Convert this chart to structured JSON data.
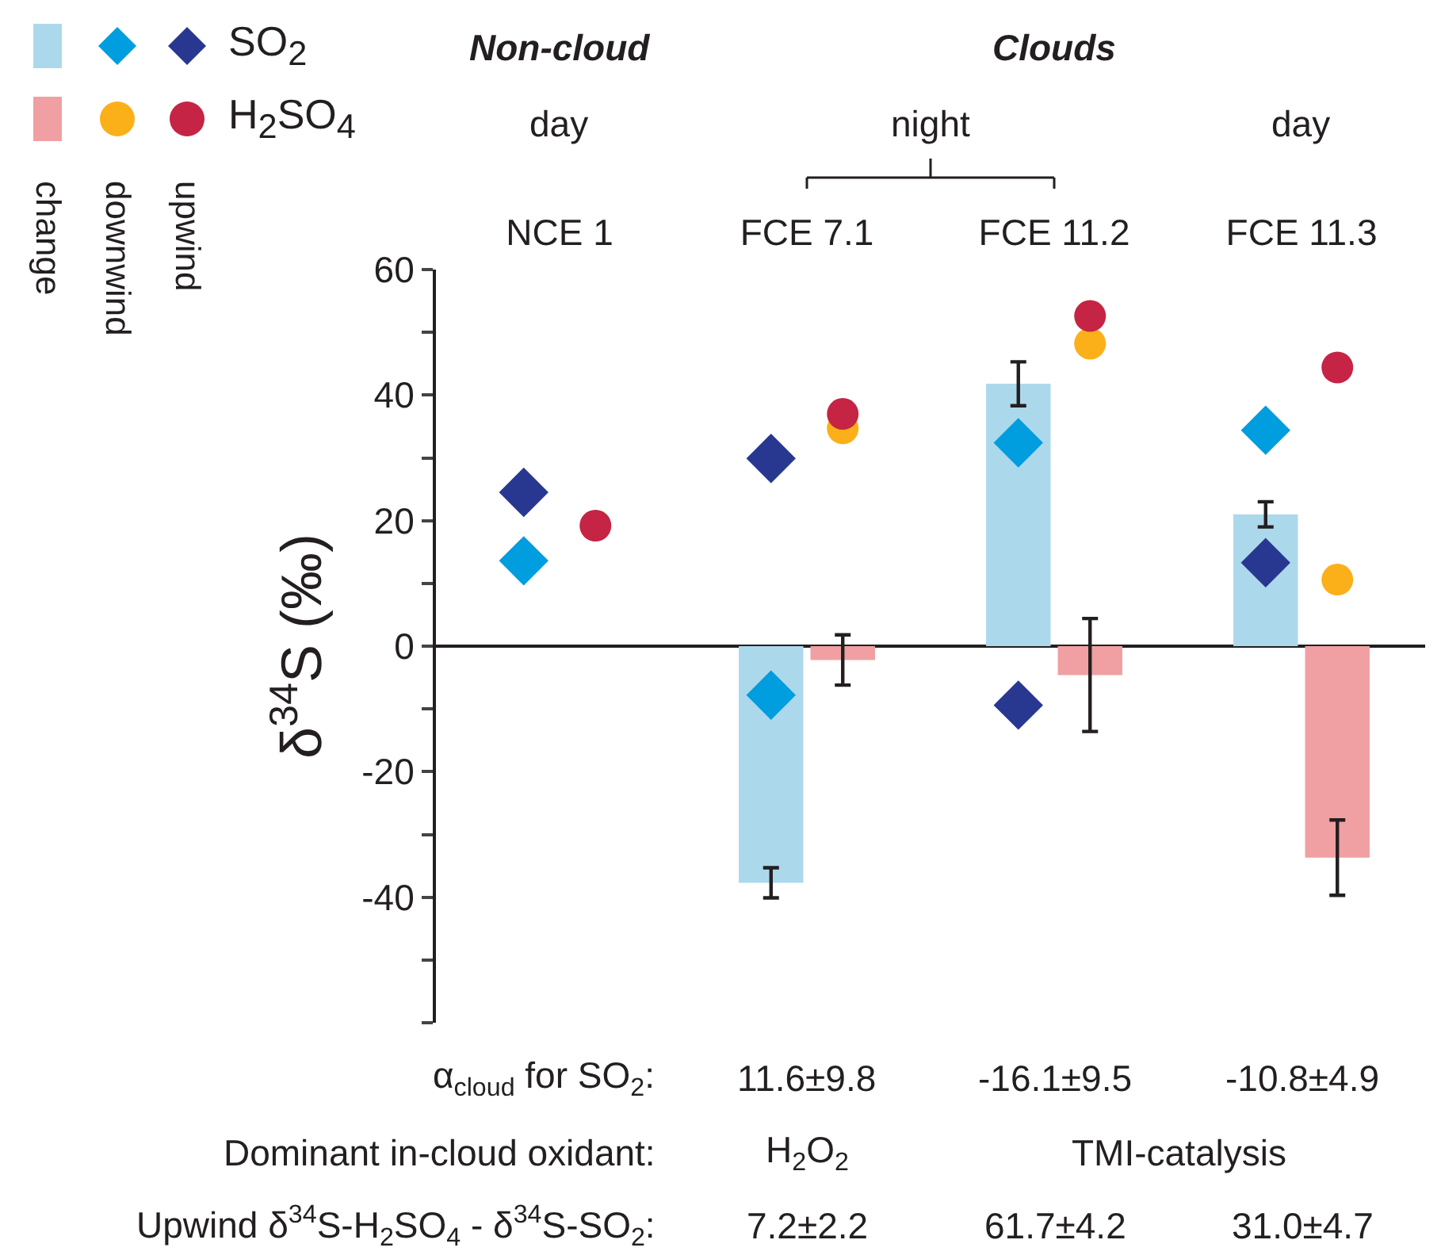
{
  "chart_data": {
    "type": "bar",
    "categories": [
      "NCE 1",
      "FCE 7.1",
      "FCE 11.2",
      "FCE 11.3"
    ],
    "ylabel": "δ$^{34}$S (‰)",
    "legend": "top left",
    "ylim": [
      -60,
      60
    ],
    "yticks": [
      {
        "value": -60,
        "label": null
      },
      {
        "value": -50,
        "label": null
      },
      -40,
      {
        "value": -30,
        "label": null
      },
      -20,
      {
        "value": -10,
        "label": null
      },
      0,
      {
        "value": 10,
        "label": null
      },
      20,
      {
        "value": 30,
        "label": null
      },
      40,
      {
        "value": 50,
        "label": null
      },
      60
    ],
    "series": [
      {
        "color": "#acd8ec",
        "values": [
          null,
          -37.7,
          41.8,
          21.0
        ],
        "errors": [
          null,
          2.4,
          3.5,
          2.0
        ]
      },
      {
        "type": "scatter",
        "marker": "diamond",
        "color": "#009ddf",
        "values": [
          13.6,
          -7.8,
          32.4,
          34.4
        ]
      },
      {
        "name": "SO$_{2}$",
        "type": "scatter",
        "marker": "diamond",
        "color": "#283891",
        "values": [
          24.5,
          29.9,
          -9.4,
          13.3
        ]
      },
      {
        "color": "#f0a0a2",
        "values": [
          null,
          -2.2,
          -4.6,
          -33.7
        ],
        "errors": [
          null,
          4.0,
          9.0,
          6.0
        ]
      },
      {
        "type": "scatter",
        "marker": "circle",
        "color": "#fbb01a",
        "values": [
          null,
          34.7,
          48.2,
          10.6
        ]
      },
      {
        "name": "H$_{2}$SO$_{4}$",
        "type": "scatter",
        "marker": "circle",
        "color": "#c52444",
        "values": [
          19.2,
          37.0,
          52.6,
          44.4
        ]
      }
    ],
    "annotations": [
      "change",
      "downwind",
      "upwind",
      "Non-cloud",
      "Clouds",
      "day",
      "night",
      "day",
      "α$_{cloud}$ for SO$_{2}$:",
      "11.6±9.8",
      "-16.1±9.5",
      "-10.8±4.9",
      "Dominant in-cloud oxidant:",
      "H$_{2}$O$_{2}$",
      "TMI-catalysis",
      "Upwind δ$^{34}$S-H$_{2}$SO$_{4}$ - δ$^{34}$S-SO$_{2}$:",
      "7.2±2.2",
      "61.7±4.2",
      "31.0±4.7"
    ]
  }
}
